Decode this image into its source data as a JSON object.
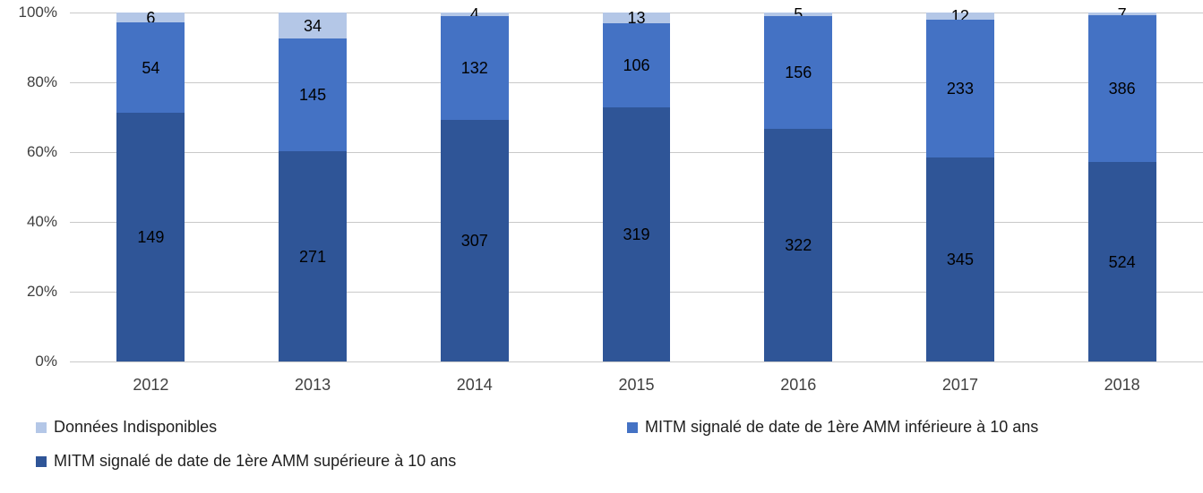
{
  "chart_data": {
    "type": "bar",
    "variant": "stacked-100-percent",
    "title": "",
    "xlabel": "",
    "ylabel": "",
    "categories": [
      "2012",
      "2013",
      "2014",
      "2015",
      "2016",
      "2017",
      "2018"
    ],
    "series": [
      {
        "name": "MITM signalé de date de 1ère AMM supérieure à 10 ans",
        "color": "#2F5597",
        "values": [
          149,
          271,
          307,
          319,
          322,
          345,
          524
        ]
      },
      {
        "name": "MITM signalé de date de 1ère AMM inférieure à 10 ans",
        "color": "#4472C4",
        "values": [
          54,
          145,
          132,
          106,
          156,
          233,
          386
        ]
      },
      {
        "name": "Données Indisponibles",
        "color": "#B4C7E7",
        "values": [
          6,
          34,
          4,
          13,
          5,
          12,
          7
        ]
      }
    ],
    "y_ticks": [
      "100%",
      "80%",
      "60%",
      "40%",
      "20%",
      "0%"
    ],
    "ylim": [
      0,
      100
    ],
    "grid": true,
    "legend_position": "bottom",
    "colors": {
      "grid": "#C9C9C9",
      "axis_text": "#404040",
      "data_label_text": "#000000",
      "background": "#FFFFFF"
    }
  },
  "legend": {
    "items": [
      {
        "label": "Données Indisponibles",
        "color": "#B4C7E7"
      },
      {
        "label": "MITM signalé de date de 1ère AMM inférieure à 10 ans",
        "color": "#4472C4"
      },
      {
        "label": "MITM signalé de date de 1ère AMM supérieure à 10 ans",
        "color": "#2F5597"
      }
    ]
  }
}
